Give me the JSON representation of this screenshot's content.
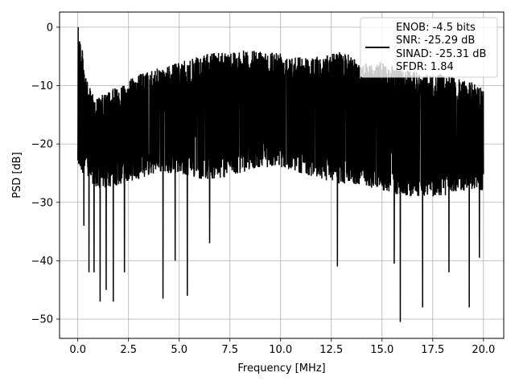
{
  "chart_data": {
    "type": "line",
    "title": "",
    "xlabel": "Frequency [MHz]",
    "ylabel": "PSD [dB]",
    "xlim": [
      -0.9,
      21.0
    ],
    "ylim": [
      -53.3,
      2.6
    ],
    "xticks": [
      0.0,
      2.5,
      5.0,
      7.5,
      10.0,
      12.5,
      15.0,
      17.5,
      20.0
    ],
    "xtick_labels": [
      "0.0",
      "2.5",
      "5.0",
      "7.5",
      "10.0",
      "12.5",
      "15.0",
      "17.5",
      "20.0"
    ],
    "yticks": [
      0,
      -10,
      -20,
      -30,
      -40,
      -50
    ],
    "ytick_labels": [
      "0",
      "−10",
      "−20",
      "−30",
      "−40",
      "−50"
    ],
    "grid": true,
    "legend_position": "top-right",
    "legend": {
      "entries": [
        {
          "color": "#000000",
          "lines": [
            "ENOB: -4.5 bits",
            "SNR: -25.29 dB",
            "SINAD: -25.31 dB",
            "SFDR: 1.84"
          ]
        }
      ]
    },
    "series": [
      {
        "color": "#000000",
        "x_range": [
          0.0,
          20.0
        ],
        "upper_envelope": {
          "x": [
            0.0,
            0.05,
            0.5,
            1.0,
            2.0,
            3.0,
            4.0,
            5.0,
            6.0,
            7.0,
            8.0,
            9.0,
            10.0,
            11.0,
            12.0,
            13.0,
            14.0,
            15.0,
            16.0,
            17.0,
            18.0,
            19.0,
            20.0
          ],
          "y": [
            -13,
            0,
            -10,
            -12,
            -10,
            -8,
            -7,
            -6,
            -5,
            -4,
            -4,
            -4,
            -4,
            -5,
            -5,
            -4,
            -6,
            -6,
            -7,
            -8,
            -8,
            -9,
            -10
          ]
        },
        "lower_envelope": {
          "x": [
            0.0,
            1.0,
            2.0,
            3.0,
            4.0,
            5.0,
            6.0,
            7.0,
            8.0,
            9.0,
            10.0,
            11.0,
            12.0,
            13.0,
            14.0,
            15.0,
            16.0,
            17.0,
            18.0,
            19.0,
            20.0
          ],
          "y": [
            -24,
            -28,
            -27,
            -26,
            -25,
            -25,
            -26,
            -26,
            -25,
            -24,
            -24,
            -25,
            -26,
            -27,
            -27,
            -28,
            -29,
            -29,
            -29,
            -28,
            -28
          ]
        },
        "dips": [
          {
            "x": 0.3,
            "y": -34
          },
          {
            "x": 0.55,
            "y": -42
          },
          {
            "x": 0.8,
            "y": -42
          },
          {
            "x": 1.1,
            "y": -47
          },
          {
            "x": 1.4,
            "y": -45
          },
          {
            "x": 1.75,
            "y": -47
          },
          {
            "x": 2.3,
            "y": -42
          },
          {
            "x": 4.2,
            "y": -46.5
          },
          {
            "x": 4.8,
            "y": -40
          },
          {
            "x": 5.4,
            "y": -46
          },
          {
            "x": 6.5,
            "y": -37
          },
          {
            "x": 12.8,
            "y": -41
          },
          {
            "x": 15.9,
            "y": -50.5
          },
          {
            "x": 15.6,
            "y": -40.5
          },
          {
            "x": 17.0,
            "y": -48
          },
          {
            "x": 18.3,
            "y": -42
          },
          {
            "x": 19.3,
            "y": -48
          },
          {
            "x": 19.8,
            "y": -39.5
          }
        ]
      }
    ]
  }
}
